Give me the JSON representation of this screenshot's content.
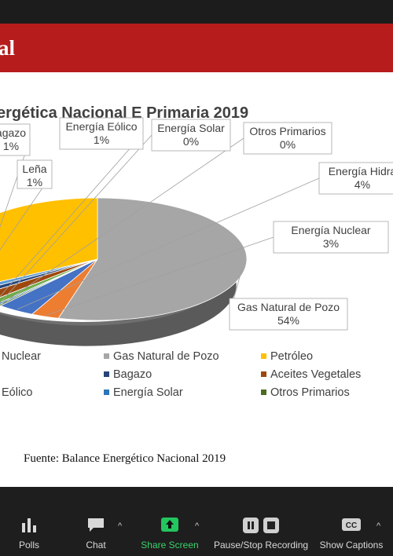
{
  "slide": {
    "band_text": "al",
    "source": "Fuente: Balance Energético Nacional 2019"
  },
  "chart_data": {
    "type": "pie",
    "title": "ergética Nacional E Primaria 2019",
    "slices": [
      {
        "name": "Gas Natural de Pozo",
        "label": "Gas Natural de Pozo",
        "pct": "54%",
        "value": 54,
        "color": "#a6a6a6"
      },
      {
        "name": "Energía Nuclear",
        "label": "Energía Nuclear",
        "pct": "3%",
        "value": 3,
        "color": "#ed7d31"
      },
      {
        "name": "Energía Hidráulica",
        "label": "Energía Hidra",
        "pct": "4%",
        "value": 4,
        "color": "#4472c4"
      },
      {
        "name": "Otros Primarios",
        "label": "Otros Primarios",
        "pct": "0%",
        "value": 0,
        "color": "#4d6b23"
      },
      {
        "name": "Energía Solar",
        "label": "Energía Solar",
        "pct": "0%",
        "value": 0,
        "color": "#2e75b6"
      },
      {
        "name": "Energía Eólico",
        "label": "Energía Eólico",
        "pct": "1%",
        "value": 1,
        "color": "#70ad47"
      },
      {
        "name": "Aceites Vegetales",
        "label": "",
        "pct": "",
        "value": 2,
        "color": "#9e480e"
      },
      {
        "name": "Bagazo",
        "label": "agazo",
        "pct": "1%",
        "value": 1,
        "color": "#264478"
      },
      {
        "name": "Leña",
        "label": "Leña",
        "pct": "1%",
        "value": 1,
        "color": "#5b9bd5"
      },
      {
        "name": "Petróleo",
        "label": "",
        "pct": "",
        "value": 33,
        "color": "#ffc000"
      }
    ],
    "legend": [
      {
        "label": "Nuclear",
        "color": "#ed7d31"
      },
      {
        "label": "Gas Natural de Pozo",
        "color": "#a6a6a6"
      },
      {
        "label": "Petróleo",
        "color": "#ffc000"
      },
      {
        "label": "Bagazo",
        "color": "#264478"
      },
      {
        "label": "Aceites Vegetales",
        "color": "#9e480e"
      },
      {
        "label": "Eólico",
        "color": "#70ad47"
      },
      {
        "label": "Energía Solar",
        "color": "#2e75b6"
      },
      {
        "label": "Otros Primarios",
        "color": "#4d6b23"
      }
    ],
    "legend_position": "bottom"
  },
  "toolbar": {
    "items": [
      {
        "label": "Polls",
        "icon": "polls-icon"
      },
      {
        "label": "Chat",
        "icon": "chat-icon"
      },
      {
        "label": "Share Screen",
        "icon": "share-screen-icon"
      },
      {
        "label": "Pause/Stop Recording",
        "icon": "pause-stop-icon"
      },
      {
        "label": "Show Captions",
        "icon": "captions-icon",
        "badge": "CC"
      }
    ]
  }
}
